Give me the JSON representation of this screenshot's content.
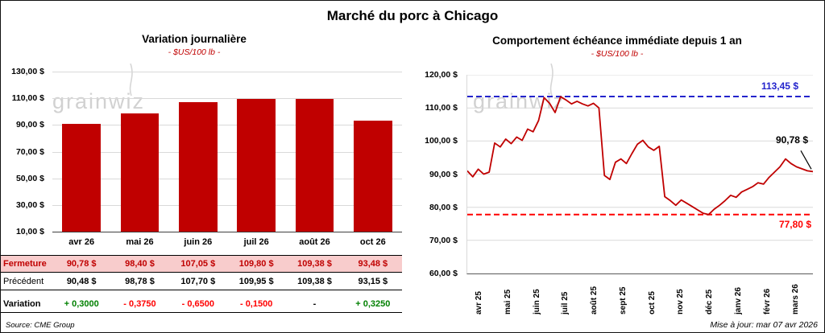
{
  "page": {
    "title": "Marché du porc à Chicago",
    "source": "Source: CME Group",
    "updated": "Mise à jour: mar 07 avr 2026",
    "watermark": "grainwiz"
  },
  "chart_data": [
    {
      "type": "bar",
      "title": "Variation journalière",
      "subtitle": "- $US/100 lb -",
      "categories": [
        "avr 26",
        "mai 26",
        "juin 26",
        "juil 26",
        "août 26",
        "oct 26"
      ],
      "values": [
        90.78,
        98.4,
        107.05,
        109.8,
        109.38,
        93.48
      ],
      "ylim": [
        10,
        130
      ],
      "ytick_labels": [
        "130,00 $",
        "110,00 $",
        "90,00 $",
        "70,00 $",
        "50,00 $",
        "30,00 $",
        "10,00 $"
      ],
      "bar_color": "#C00000",
      "grid": true,
      "legend": "none"
    },
    {
      "type": "line",
      "title": "Comportement échéance immédiate depuis 1 an",
      "subtitle": "- $US/100 lb -",
      "x_labels": [
        "avr 25",
        "mai 25",
        "juin 25",
        "juil 25",
        "août 25",
        "sept 25",
        "oct 25",
        "nov 25",
        "déc 25",
        "janv 26",
        "févr 26",
        "mars 26"
      ],
      "ylim": [
        60,
        120
      ],
      "ytick_labels": [
        "120,00 $",
        "110,00 $",
        "100,00 $",
        "90,00 $",
        "80,00 $",
        "70,00 $",
        "60,00 $"
      ],
      "values": [
        91.0,
        89.2,
        91.5,
        90.0,
        90.6,
        99.4,
        98.2,
        100.6,
        99.2,
        101.2,
        100.2,
        103.6,
        102.8,
        106.2,
        113.1,
        111.4,
        108.6,
        113.4,
        112.4,
        111.2,
        112.0,
        111.2,
        110.6,
        111.4,
        110.0,
        89.6,
        88.4,
        93.6,
        94.6,
        93.2,
        96.2,
        99.0,
        100.2,
        98.2,
        97.2,
        98.4,
        83.2,
        82.0,
        80.6,
        82.2,
        81.2,
        80.2,
        79.2,
        78.2,
        77.8,
        79.4,
        80.6,
        82.0,
        83.6,
        83.0,
        84.6,
        85.4,
        86.2,
        87.4,
        87.0,
        89.0,
        90.6,
        92.2,
        94.6,
        93.2,
        92.2,
        91.6,
        91.0,
        90.78
      ],
      "line_color": "#C00000",
      "ref_high": {
        "value": 113.45,
        "label": "113,45 $",
        "color": "#2424CC"
      },
      "ref_low": {
        "value": 77.8,
        "label": "77,80 $",
        "color": "#FF0000"
      },
      "last": {
        "value": 90.78,
        "label": "90,78 $"
      },
      "grid": true,
      "legend": "none"
    }
  ],
  "table": {
    "rows": [
      {
        "label": "Fermeture",
        "style": "close",
        "values": [
          "90,78 $",
          "98,40 $",
          "107,05 $",
          "109,80 $",
          "109,38 $",
          "93,48 $"
        ]
      },
      {
        "label": "Précédent",
        "style": "previous",
        "values": [
          "90,48 $",
          "98,78 $",
          "107,70 $",
          "109,95 $",
          "109,38 $",
          "93,15 $"
        ]
      },
      {
        "label": "Variation",
        "style": "variation",
        "values": [
          {
            "text": "+ 0,3000",
            "color": "green"
          },
          {
            "text": "- 0,3750",
            "color": "red"
          },
          {
            "text": "- 0,6500",
            "color": "red"
          },
          {
            "text": "- 0,1500",
            "color": "red"
          },
          {
            "text": "-",
            "color": "black"
          },
          {
            "text": "+ 0,3250",
            "color": "green"
          }
        ]
      }
    ]
  }
}
